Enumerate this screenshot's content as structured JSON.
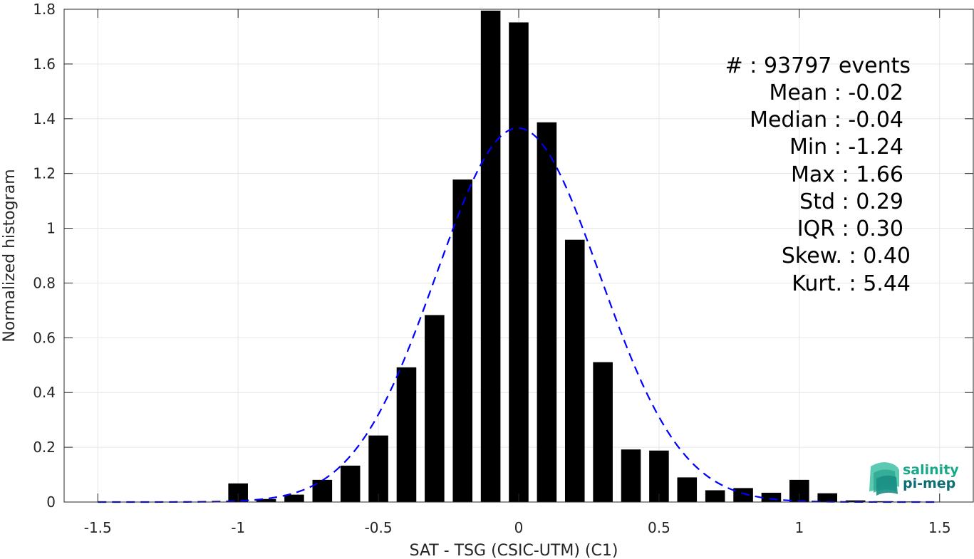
{
  "chart_data": {
    "type": "bar",
    "xlabel": "SAT - TSG (CSIC-UTM) (C1)",
    "ylabel": "Normalized histogram",
    "xlim": [
      -1.62,
      1.62
    ],
    "ylim": [
      0,
      1.8
    ],
    "xticks": [
      -1.5,
      -1,
      -0.5,
      0,
      0.5,
      1,
      1.5
    ],
    "xtick_labels": [
      "-1.5",
      "-1",
      "-0.5",
      "0",
      "0.5",
      "1",
      "1.5"
    ],
    "yticks": [
      0,
      0.2,
      0.4,
      0.6,
      0.8,
      1,
      1.2,
      1.4,
      1.6,
      1.8
    ],
    "ytick_labels": [
      "0",
      "0.2",
      "0.4",
      "0.6",
      "0.8",
      "1",
      "1.2",
      "1.4",
      "1.6",
      "1.8"
    ],
    "grid": true,
    "bar_color": "#000000",
    "bar_width": 0.07,
    "bars": {
      "x": [
        -1.0,
        -0.9,
        -0.8,
        -0.7,
        -0.6,
        -0.5,
        -0.4,
        -0.3,
        -0.2,
        -0.1,
        0.0,
        0.1,
        0.2,
        0.3,
        0.4,
        0.5,
        0.6,
        0.7,
        0.8,
        0.9,
        1.0,
        1.1,
        1.2,
        1.3,
        1.4,
        1.5
      ],
      "values": [
        0.068,
        0.011,
        0.027,
        0.081,
        0.133,
        0.243,
        0.492,
        0.683,
        1.178,
        1.795,
        1.752,
        1.387,
        0.958,
        0.511,
        0.192,
        0.188,
        0.09,
        0.043,
        0.051,
        0.034,
        0.081,
        0.032,
        0.006,
        0.003,
        0.002,
        0.001
      ]
    },
    "fit_curve": {
      "type": "normal",
      "mean": -0.0025,
      "std": 0.292,
      "color": "#0000ff",
      "style": "dashed",
      "x_range": [
        -1.5,
        1.5
      ]
    }
  },
  "stats": [
    "#  : 93797 events",
    "Mean : -0.02",
    "Median : -0.04",
    "Min : -1.24",
    "Max : 1.66",
    "Std : 0.29",
    "IQR : 0.30",
    "Skew. : 0.40",
    "Kurt. : 5.44"
  ],
  "logo": {
    "line1": "salinity",
    "line2": "pi-mep",
    "color1": "#1aa88a",
    "color2": "#0e6e74"
  }
}
